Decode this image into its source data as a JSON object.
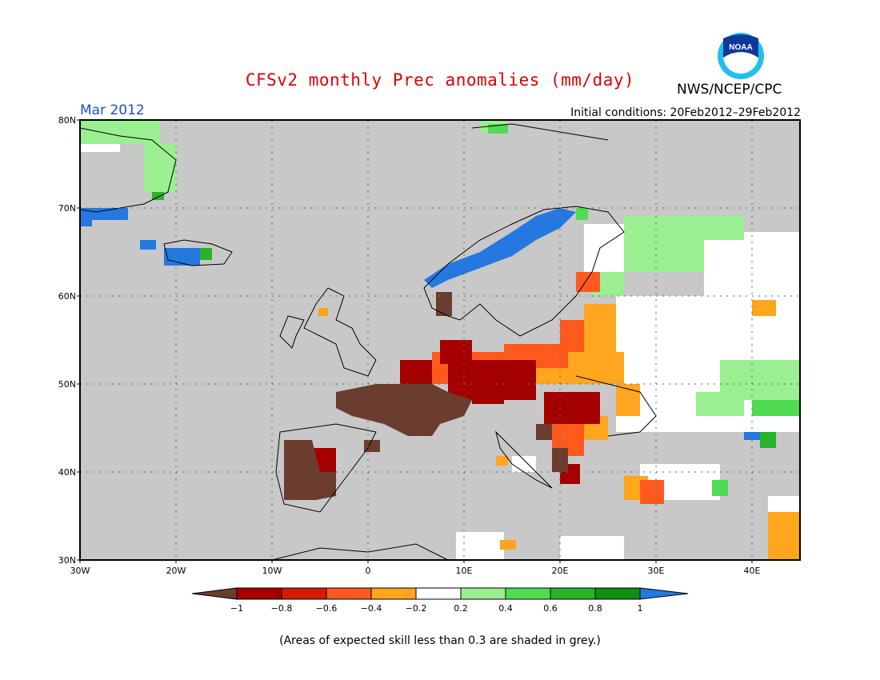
{
  "title": "CFSv2 monthly Prec anomalies (mm/day)",
  "month": "Mar 2012",
  "initial_conditions": "Initial conditions: 20Feb2012–29Feb2012",
  "agency": "NWS/NCEP/CPC",
  "logo": {
    "text": "NOAA",
    "icon": "noaa-logo"
  },
  "footnote": "(Areas of expected skill less than 0.3 are shaded in grey.)",
  "map": {
    "lat_labels": [
      "80N",
      "70N",
      "60N",
      "50N",
      "40N",
      "30N"
    ],
    "lon_labels": [
      "30W",
      "20W",
      "10W",
      "0",
      "10E",
      "20E",
      "30E",
      "40E"
    ],
    "lat_range": [
      30,
      80
    ],
    "lon_range": [
      -30,
      45
    ],
    "grey_color": "#c8c8c8"
  },
  "legend": {
    "labels": [
      "−1",
      "−0.8",
      "−0.6",
      "−0.4",
      "−0.2",
      "0.2",
      "0.4",
      "0.6",
      "0.8",
      "1"
    ],
    "colors": [
      "#6b3d2e",
      "#a50000",
      "#d51a00",
      "#ff5a1e",
      "#ffa51e",
      "#ffffff",
      "#9aef91",
      "#50dc50",
      "#28b428",
      "#109010",
      "#2478e0"
    ]
  }
}
